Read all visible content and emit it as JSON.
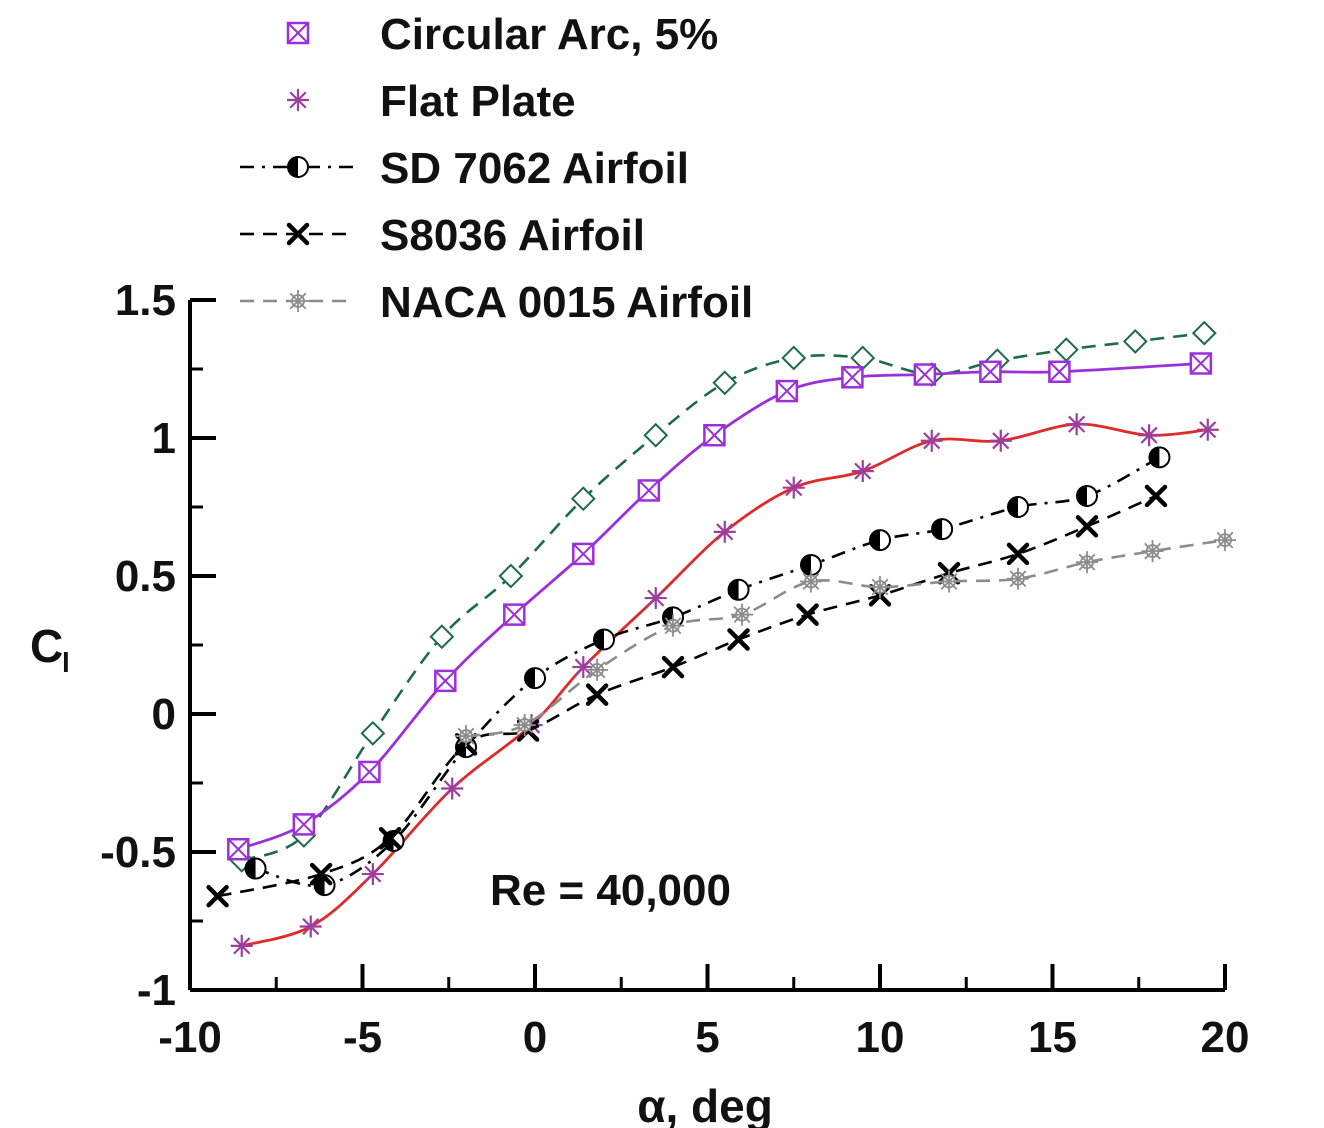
{
  "chart_data": {
    "type": "line",
    "title": "",
    "xlabel": "α, deg",
    "ylabel_main": "C",
    "ylabel_sub": "l",
    "xlim": [
      -10,
      20
    ],
    "ylim": [
      -1,
      1.5
    ],
    "x_ticks": [
      -10,
      -5,
      0,
      5,
      10,
      15,
      20
    ],
    "x_tick_labels": [
      "-10",
      "-5",
      "0",
      "5",
      "10",
      "15",
      "20"
    ],
    "y_ticks": [
      -1,
      -0.5,
      0,
      0.5,
      1,
      1.5
    ],
    "y_tick_labels": [
      "-1",
      "-0.5",
      "0",
      "0.5",
      "1",
      "1.5"
    ],
    "grid": false,
    "legend_position": "top-left",
    "annotation": "Re = 40,000",
    "series": [
      {
        "name": "",
        "marker": "diamond",
        "color": "#1e6b47",
        "linestyle": "dashed",
        "x": [
          -8.5,
          -6.7,
          -4.7,
          -2.7,
          -0.7,
          1.4,
          3.5,
          5.5,
          7.5,
          9.5,
          11.5,
          13.4,
          15.4,
          17.4,
          19.4
        ],
        "y": [
          -0.53,
          -0.44,
          -0.07,
          0.28,
          0.5,
          0.78,
          1.01,
          1.2,
          1.29,
          1.29,
          1.23,
          1.28,
          1.32,
          1.35,
          1.38
        ]
      },
      {
        "name": "Circular Arc, 5%",
        "marker": "boxed-x",
        "color": "#9b30d9",
        "linestyle": "solid",
        "x": [
          -8.6,
          -6.7,
          -4.8,
          -2.6,
          -0.6,
          1.4,
          3.3,
          5.2,
          7.3,
          9.2,
          11.3,
          13.2,
          15.2,
          19.3
        ],
        "y": [
          -0.49,
          -0.4,
          -0.21,
          0.12,
          0.36,
          0.58,
          0.81,
          1.01,
          1.17,
          1.22,
          1.23,
          1.24,
          1.24,
          1.27
        ]
      },
      {
        "name": "Flat Plate",
        "marker": "asterisk",
        "color": "#9c3e9c",
        "linecolor": "#e02a2a",
        "linestyle": "solid",
        "x": [
          -8.5,
          -6.5,
          -4.7,
          -2.4,
          -0.1,
          1.4,
          3.5,
          5.5,
          7.5,
          9.5,
          11.5,
          13.5,
          15.7,
          17.8,
          19.5
        ],
        "y": [
          -0.84,
          -0.77,
          -0.58,
          -0.27,
          -0.04,
          0.17,
          0.42,
          0.66,
          0.82,
          0.88,
          0.99,
          0.99,
          1.05,
          1.01,
          1.03
        ]
      },
      {
        "name": "SD 7062 Airfoil",
        "marker": "half-filled-circle",
        "color": "#000000",
        "linestyle": "dash-dot",
        "x": [
          -8.1,
          -6.1,
          -4.1,
          -2.0,
          0.0,
          2.0,
          4.0,
          5.9,
          8.0,
          10.0,
          11.8,
          14.0,
          16.0,
          18.1
        ],
        "y": [
          -0.56,
          -0.62,
          -0.46,
          -0.12,
          0.13,
          0.27,
          0.35,
          0.45,
          0.54,
          0.63,
          0.67,
          0.75,
          0.79,
          0.93
        ]
      },
      {
        "name": "S8036 Airfoil",
        "marker": "x",
        "color": "#000000",
        "linestyle": "dashed",
        "x": [
          -9.2,
          -6.2,
          -4.2,
          -2.0,
          -0.2,
          1.8,
          4.0,
          5.9,
          7.9,
          10.0,
          12.0,
          14.0,
          16.0,
          18.0
        ],
        "y": [
          -0.66,
          -0.58,
          -0.45,
          -0.11,
          -0.06,
          0.07,
          0.17,
          0.27,
          0.36,
          0.43,
          0.51,
          0.58,
          0.68,
          0.79
        ]
      },
      {
        "name": "NACA 0015 Airfoil",
        "marker": "star-circle",
        "color": "#8c8c8c",
        "linestyle": "dashed",
        "x": [
          -2.0,
          -0.3,
          1.8,
          4.0,
          6.0,
          8.0,
          10.0,
          12.0,
          14.0,
          16.0,
          17.9,
          20.0
        ],
        "y": [
          -0.08,
          -0.04,
          0.16,
          0.32,
          0.36,
          0.48,
          0.46,
          0.48,
          0.49,
          0.55,
          0.59,
          0.63
        ]
      }
    ]
  }
}
